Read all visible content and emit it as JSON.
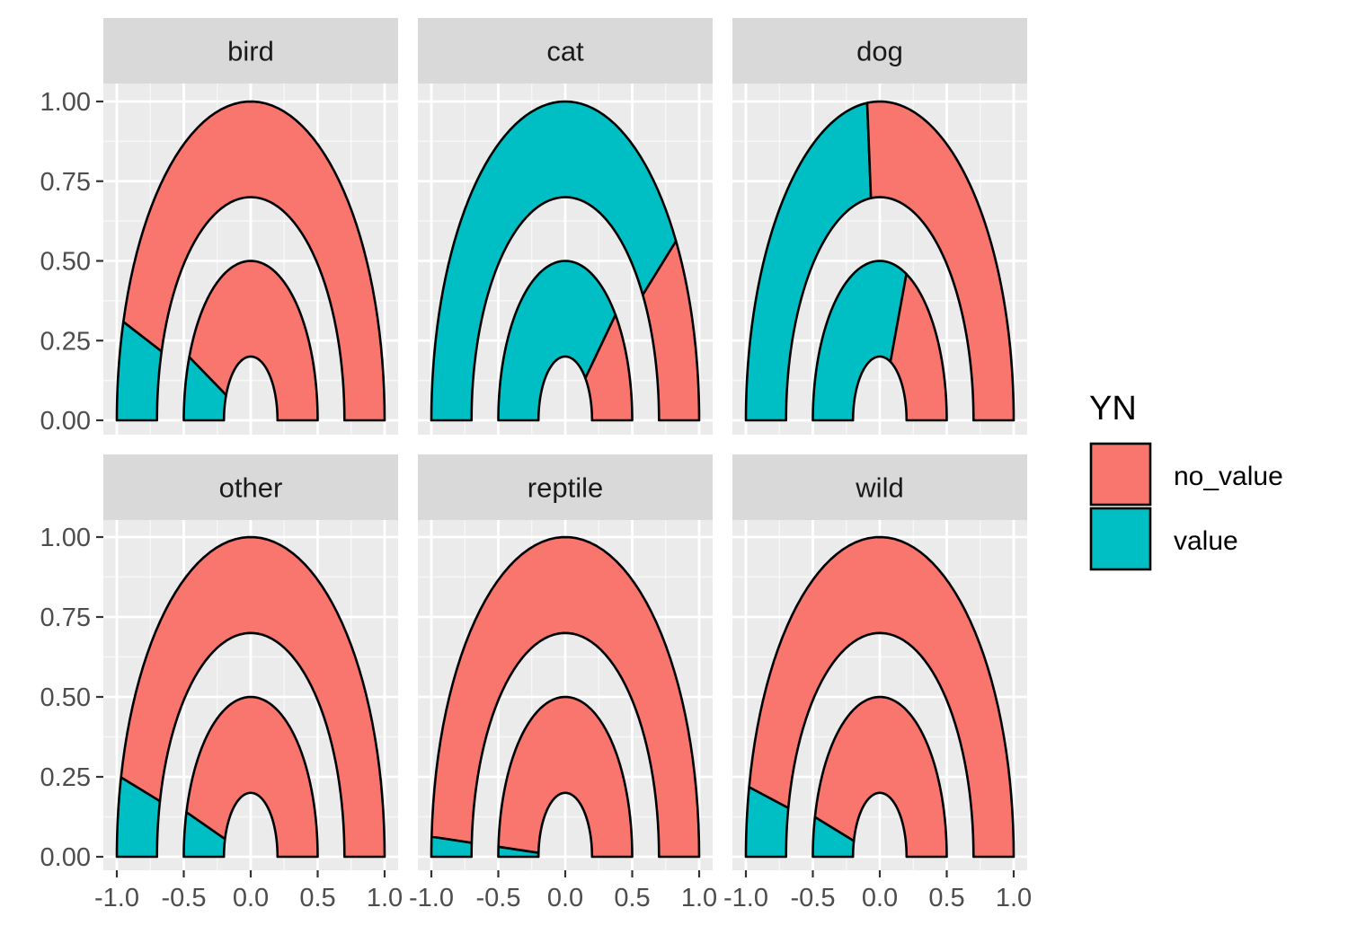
{
  "chart_data": {
    "type": "faceted-donut-semicircle",
    "facets": [
      {
        "name": "bird",
        "outer_value_fraction": 0.1,
        "inner_value_fraction": 0.13
      },
      {
        "name": "cat",
        "outer_value_fraction": 0.81,
        "inner_value_fraction": 0.77
      },
      {
        "name": "dog",
        "outer_value_fraction": 0.47,
        "inner_value_fraction": 0.63
      },
      {
        "name": "other",
        "outer_value_fraction": 0.08,
        "inner_value_fraction": 0.09
      },
      {
        "name": "reptile",
        "outer_value_fraction": 0.02,
        "inner_value_fraction": 0.02
      },
      {
        "name": "wild",
        "outer_value_fraction": 0.07,
        "inner_value_fraction": 0.08
      }
    ],
    "rings": {
      "outer": {
        "r_inner": 0.7,
        "r_outer": 1.0
      },
      "inner": {
        "r_inner": 0.2,
        "r_outer": 0.5
      }
    },
    "xlim": [
      -1.0,
      1.0
    ],
    "ylim": [
      0.0,
      1.0
    ],
    "x_ticks": [
      -1.0,
      -0.5,
      0.0,
      0.5,
      1.0
    ],
    "x_tick_labels": [
      "-1.0",
      "-0.5",
      "0.0",
      "0.5",
      "1.0"
    ],
    "y_ticks": [
      0.0,
      0.25,
      0.5,
      0.75,
      1.0
    ],
    "y_tick_labels": [
      "0.00",
      "0.25",
      "0.50",
      "0.75",
      "1.00"
    ],
    "grid": true,
    "legend": {
      "title": "YN",
      "position": "right",
      "entries": [
        {
          "label": "no_value",
          "color": "#F8766D"
        },
        {
          "label": "value",
          "color": "#00BFC4"
        }
      ]
    },
    "colors": {
      "no_value": "#F8766D",
      "value": "#00BFC4",
      "panel_bg": "#EBEBEB",
      "strip_bg": "#D9D9D9",
      "grid": "#FFFFFF"
    }
  }
}
